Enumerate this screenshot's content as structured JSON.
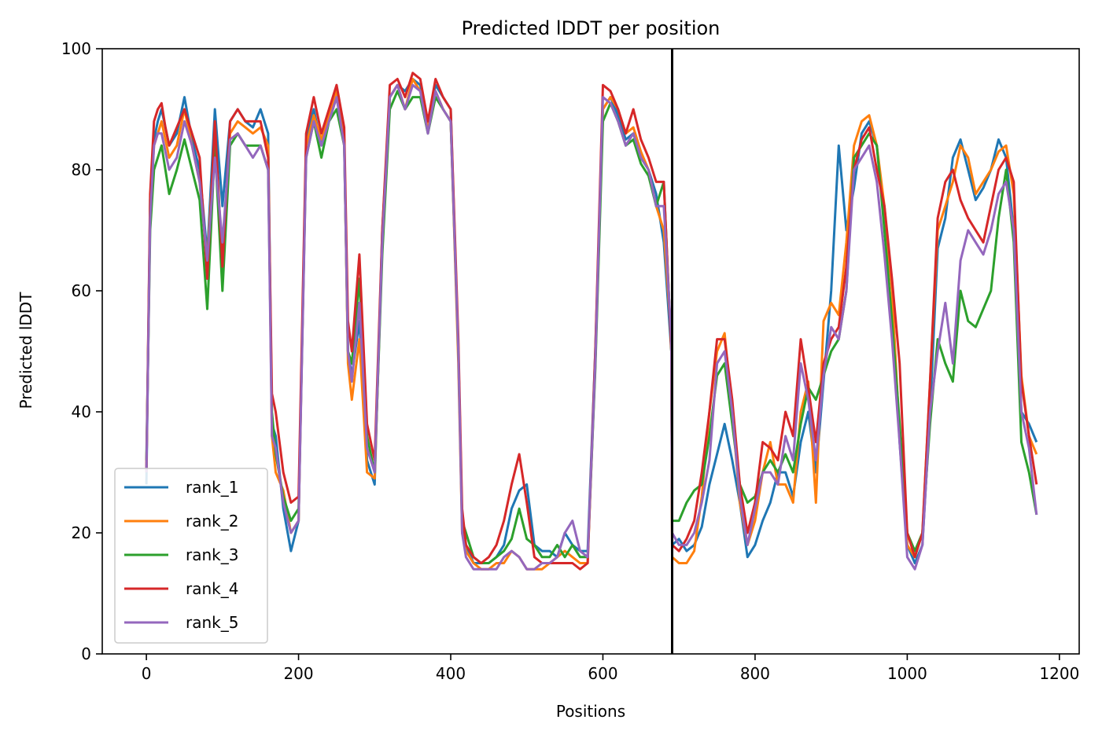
{
  "chart_data": {
    "type": "line",
    "title": "Predicted lDDT per position",
    "xlabel": "Positions",
    "ylabel": "Predicted lDDT",
    "xlim": [
      -58,
      1226
    ],
    "ylim": [
      0,
      100
    ],
    "xticks": [
      0,
      200,
      400,
      600,
      800,
      1000,
      1200
    ],
    "yticks": [
      0,
      20,
      40,
      60,
      80,
      100
    ],
    "grid": false,
    "legend_position": "lower-left",
    "vline": 691,
    "series": [
      {
        "name": "rank_1",
        "color": "#1f77b4",
        "x": [
          0,
          5,
          10,
          15,
          20,
          25,
          30,
          40,
          50,
          60,
          70,
          80,
          90,
          100,
          110,
          120,
          130,
          140,
          150,
          160,
          165,
          170,
          180,
          190,
          200,
          210,
          220,
          230,
          240,
          250,
          260,
          265,
          270,
          280,
          290,
          300,
          310,
          320,
          330,
          340,
          350,
          360,
          370,
          380,
          390,
          400,
          410,
          415,
          420,
          430,
          440,
          450,
          460,
          470,
          480,
          490,
          500,
          510,
          520,
          530,
          540,
          550,
          560,
          570,
          580,
          590,
          600,
          610,
          620,
          630,
          640,
          650,
          660,
          670,
          680,
          690,
          691,
          700,
          710,
          720,
          730,
          740,
          750,
          760,
          770,
          780,
          790,
          800,
          810,
          820,
          830,
          840,
          850,
          860,
          870,
          880,
          890,
          900,
          910,
          920,
          930,
          940,
          950,
          960,
          970,
          980,
          990,
          1000,
          1010,
          1020,
          1030,
          1040,
          1050,
          1060,
          1070,
          1080,
          1090,
          1100,
          1110,
          1120,
          1130,
          1140,
          1150,
          1160,
          1170
        ],
        "y": [
          28,
          75,
          85,
          88,
          90,
          87,
          84,
          86,
          92,
          85,
          80,
          66,
          90,
          74,
          88,
          90,
          88,
          87,
          90,
          86,
          38,
          36,
          24,
          17,
          22,
          85,
          90,
          84,
          88,
          92,
          85,
          50,
          46,
          55,
          32,
          28,
          70,
          92,
          94,
          93,
          95,
          94,
          88,
          94,
          92,
          90,
          50,
          22,
          18,
          15,
          15,
          15,
          16,
          18,
          24,
          27,
          28,
          18,
          17,
          17,
          16,
          20,
          18,
          17,
          17,
          50,
          90,
          92,
          89,
          85,
          86,
          82,
          80,
          76,
          68,
          50,
          18,
          19,
          17,
          18,
          21,
          28,
          33,
          38,
          32,
          25,
          16,
          18,
          22,
          25,
          30,
          30,
          26,
          35,
          40,
          30,
          45,
          60,
          84,
          70,
          77,
          86,
          88,
          84,
          72,
          60,
          35,
          18,
          15,
          18,
          40,
          67,
          72,
          82,
          85,
          80,
          75,
          77,
          80,
          85,
          82,
          70,
          40,
          38,
          35
        ]
      },
      {
        "name": "rank_2",
        "color": "#ff7f0e",
        "x": [
          0,
          5,
          10,
          15,
          20,
          25,
          30,
          40,
          50,
          60,
          70,
          80,
          90,
          100,
          110,
          120,
          130,
          140,
          150,
          160,
          165,
          170,
          180,
          190,
          200,
          210,
          220,
          230,
          240,
          250,
          260,
          265,
          270,
          280,
          290,
          300,
          310,
          320,
          330,
          340,
          350,
          360,
          370,
          380,
          390,
          400,
          410,
          415,
          420,
          430,
          440,
          450,
          460,
          470,
          480,
          490,
          500,
          510,
          520,
          530,
          540,
          550,
          560,
          570,
          580,
          590,
          600,
          610,
          620,
          630,
          640,
          650,
          660,
          670,
          680,
          690,
          691,
          700,
          710,
          720,
          730,
          740,
          750,
          760,
          770,
          780,
          790,
          800,
          810,
          820,
          830,
          840,
          850,
          860,
          870,
          880,
          890,
          900,
          910,
          920,
          930,
          940,
          950,
          960,
          970,
          980,
          990,
          1000,
          1010,
          1020,
          1030,
          1040,
          1050,
          1060,
          1070,
          1080,
          1090,
          1100,
          1110,
          1120,
          1130,
          1140,
          1150,
          1160,
          1170
        ],
        "y": [
          30,
          74,
          84,
          86,
          88,
          85,
          82,
          84,
          90,
          84,
          78,
          65,
          86,
          64,
          86,
          88,
          87,
          86,
          87,
          84,
          36,
          30,
          27,
          20,
          22,
          84,
          89,
          85,
          89,
          93,
          85,
          48,
          42,
          52,
          30,
          29,
          68,
          92,
          94,
          90,
          95,
          93,
          87,
          93,
          90,
          88,
          48,
          20,
          17,
          15,
          14,
          14,
          15,
          15,
          17,
          16,
          14,
          14,
          14,
          15,
          16,
          17,
          16,
          15,
          15,
          48,
          90,
          92,
          90,
          86,
          87,
          83,
          80,
          74,
          70,
          52,
          16,
          15,
          15,
          17,
          26,
          40,
          50,
          53,
          40,
          25,
          18,
          22,
          30,
          35,
          28,
          28,
          25,
          40,
          45,
          25,
          55,
          58,
          56,
          68,
          84,
          88,
          89,
          84,
          74,
          60,
          36,
          18,
          16,
          20,
          45,
          70,
          74,
          78,
          84,
          82,
          76,
          78,
          80,
          83,
          84,
          76,
          46,
          36,
          33
        ]
      },
      {
        "name": "rank_3",
        "color": "#2ca02c",
        "x": [
          0,
          5,
          10,
          15,
          20,
          25,
          30,
          40,
          50,
          60,
          70,
          80,
          90,
          100,
          110,
          120,
          130,
          140,
          150,
          160,
          165,
          170,
          180,
          190,
          200,
          210,
          220,
          230,
          240,
          250,
          260,
          265,
          270,
          280,
          290,
          300,
          310,
          320,
          330,
          340,
          350,
          360,
          370,
          380,
          390,
          400,
          410,
          415,
          420,
          430,
          440,
          450,
          460,
          470,
          480,
          490,
          500,
          510,
          520,
          530,
          540,
          550,
          560,
          570,
          580,
          590,
          600,
          610,
          620,
          630,
          640,
          650,
          660,
          670,
          680,
          690,
          691,
          700,
          710,
          720,
          730,
          740,
          750,
          760,
          770,
          780,
          790,
          800,
          810,
          820,
          830,
          840,
          850,
          860,
          870,
          880,
          890,
          900,
          910,
          920,
          930,
          940,
          950,
          960,
          970,
          980,
          990,
          1000,
          1010,
          1020,
          1030,
          1040,
          1050,
          1060,
          1070,
          1080,
          1090,
          1100,
          1110,
          1120,
          1130,
          1140,
          1150,
          1160,
          1170
        ],
        "y": [
          32,
          70,
          80,
          82,
          84,
          80,
          76,
          80,
          85,
          80,
          75,
          57,
          84,
          60,
          84,
          86,
          84,
          84,
          84,
          80,
          40,
          33,
          26,
          22,
          24,
          82,
          88,
          82,
          88,
          90,
          84,
          50,
          48,
          62,
          36,
          30,
          66,
          90,
          93,
          90,
          92,
          92,
          86,
          92,
          90,
          88,
          50,
          22,
          20,
          16,
          15,
          15,
          16,
          17,
          19,
          24,
          19,
          18,
          16,
          16,
          18,
          16,
          18,
          16,
          16,
          47,
          88,
          91,
          88,
          84,
          85,
          81,
          79,
          74,
          78,
          50,
          22,
          22,
          25,
          27,
          28,
          36,
          46,
          48,
          38,
          28,
          25,
          26,
          30,
          32,
          30,
          33,
          30,
          38,
          44,
          42,
          46,
          50,
          52,
          60,
          82,
          84,
          86,
          84,
          70,
          55,
          38,
          20,
          17,
          20,
          38,
          52,
          48,
          45,
          60,
          55,
          54,
          57,
          60,
          72,
          80,
          68,
          35,
          30,
          23
        ]
      },
      {
        "name": "rank_4",
        "color": "#d62728",
        "x": [
          0,
          5,
          10,
          15,
          20,
          25,
          30,
          40,
          50,
          60,
          70,
          80,
          90,
          100,
          110,
          120,
          130,
          140,
          150,
          160,
          165,
          170,
          180,
          190,
          200,
          210,
          220,
          230,
          240,
          250,
          260,
          265,
          270,
          280,
          290,
          300,
          310,
          320,
          330,
          340,
          350,
          360,
          370,
          380,
          390,
          400,
          410,
          415,
          420,
          430,
          440,
          450,
          460,
          470,
          480,
          490,
          500,
          510,
          520,
          530,
          540,
          550,
          560,
          570,
          580,
          590,
          600,
          610,
          620,
          630,
          640,
          650,
          660,
          670,
          680,
          690,
          691,
          700,
          710,
          720,
          730,
          740,
          750,
          760,
          770,
          780,
          790,
          800,
          810,
          820,
          830,
          840,
          850,
          860,
          870,
          880,
          890,
          900,
          910,
          920,
          930,
          940,
          950,
          960,
          970,
          980,
          990,
          1000,
          1010,
          1020,
          1030,
          1040,
          1050,
          1060,
          1070,
          1080,
          1090,
          1100,
          1110,
          1120,
          1130,
          1140,
          1150,
          1160,
          1170
        ],
        "y": [
          30,
          76,
          88,
          90,
          91,
          87,
          84,
          87,
          90,
          86,
          82,
          62,
          88,
          64,
          88,
          90,
          88,
          88,
          88,
          82,
          43,
          40,
          30,
          25,
          26,
          86,
          92,
          86,
          90,
          94,
          87,
          55,
          50,
          66,
          38,
          32,
          70,
          94,
          95,
          92,
          96,
          95,
          88,
          95,
          92,
          90,
          52,
          24,
          18,
          16,
          15,
          16,
          18,
          22,
          28,
          33,
          25,
          16,
          15,
          15,
          15,
          15,
          15,
          14,
          15,
          50,
          94,
          93,
          90,
          86,
          90,
          85,
          82,
          78,
          78,
          50,
          18,
          17,
          19,
          22,
          30,
          40,
          52,
          52,
          42,
          28,
          20,
          25,
          35,
          34,
          32,
          40,
          36,
          52,
          44,
          35,
          48,
          52,
          54,
          64,
          80,
          85,
          87,
          80,
          74,
          62,
          48,
          20,
          16,
          20,
          45,
          72,
          78,
          80,
          75,
          72,
          70,
          68,
          74,
          80,
          82,
          78,
          45,
          36,
          28
        ]
      },
      {
        "name": "rank_5",
        "color": "#9467bd",
        "x": [
          0,
          5,
          10,
          15,
          20,
          25,
          30,
          40,
          50,
          60,
          70,
          80,
          90,
          100,
          110,
          120,
          130,
          140,
          150,
          160,
          165,
          170,
          180,
          190,
          200,
          210,
          220,
          230,
          240,
          250,
          260,
          265,
          270,
          280,
          290,
          300,
          310,
          320,
          330,
          340,
          350,
          360,
          370,
          380,
          390,
          400,
          410,
          415,
          420,
          430,
          440,
          450,
          460,
          470,
          480,
          490,
          500,
          510,
          520,
          530,
          540,
          550,
          560,
          570,
          580,
          590,
          600,
          610,
          620,
          630,
          640,
          650,
          660,
          670,
          680,
          690,
          691,
          700,
          710,
          720,
          730,
          740,
          750,
          760,
          770,
          780,
          790,
          800,
          810,
          820,
          830,
          840,
          850,
          860,
          870,
          880,
          890,
          900,
          910,
          920,
          930,
          940,
          950,
          960,
          970,
          980,
          990,
          1000,
          1010,
          1020,
          1030,
          1040,
          1050,
          1060,
          1070,
          1080,
          1090,
          1100,
          1110,
          1120,
          1130,
          1140,
          1150,
          1160,
          1170
        ],
        "y": [
          30,
          72,
          84,
          86,
          86,
          83,
          80,
          82,
          88,
          84,
          78,
          65,
          82,
          68,
          85,
          86,
          84,
          82,
          84,
          80,
          36,
          34,
          25,
          20,
          22,
          82,
          88,
          84,
          88,
          92,
          84,
          50,
          45,
          58,
          34,
          30,
          68,
          92,
          94,
          90,
          94,
          93,
          86,
          93,
          90,
          88,
          50,
          20,
          16,
          14,
          14,
          14,
          14,
          16,
          17,
          16,
          14,
          14,
          15,
          15,
          16,
          20,
          22,
          17,
          16,
          48,
          92,
          91,
          88,
          84,
          86,
          82,
          80,
          74,
          74,
          52,
          20,
          18,
          18,
          20,
          25,
          32,
          48,
          50,
          40,
          26,
          18,
          24,
          30,
          30,
          28,
          36,
          32,
          48,
          42,
          32,
          46,
          54,
          52,
          60,
          80,
          82,
          84,
          78,
          66,
          52,
          35,
          16,
          14,
          18,
          40,
          50,
          58,
          48,
          65,
          70,
          68,
          66,
          70,
          76,
          78,
          70,
          40,
          34,
          23
        ]
      }
    ]
  }
}
